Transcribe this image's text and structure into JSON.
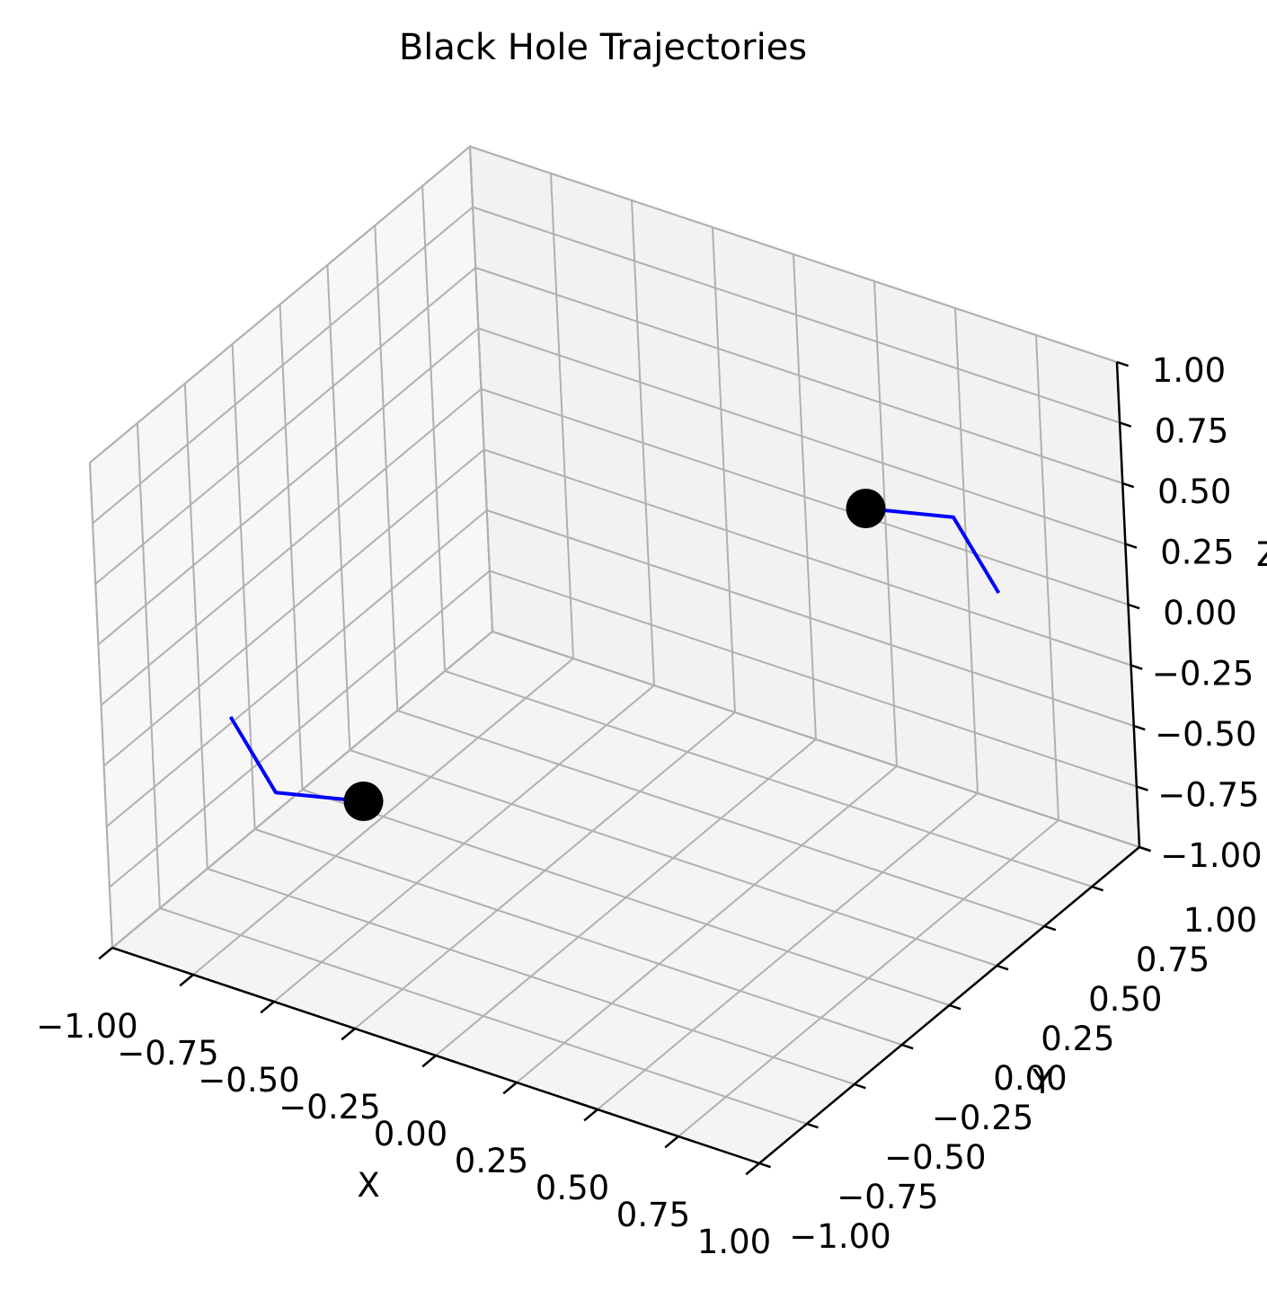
{
  "chart_data": {
    "type": "line",
    "projection": "3d",
    "title": "Black Hole Trajectories",
    "xlabel": "X",
    "ylabel": "Y",
    "zlabel": "Z",
    "xlim": [
      -1,
      1
    ],
    "ylim": [
      -1,
      1
    ],
    "zlim": [
      -1,
      1
    ],
    "xticks": [
      "−1.00",
      "−0.75",
      "−0.50",
      "−0.25",
      "0.00",
      "0.25",
      "0.50",
      "0.75",
      "1.00"
    ],
    "yticks": [
      "−1.00",
      "−0.75",
      "−0.50",
      "−0.25",
      "0.00",
      "0.25",
      "0.50",
      "0.75",
      "1.00"
    ],
    "zticks": [
      "−1.00",
      "−0.75",
      "−0.50",
      "−0.25",
      "0.00",
      "0.25",
      "0.50",
      "0.75",
      "1.00"
    ],
    "grid": true,
    "series": [
      {
        "color": "#0000ff",
        "points": [
          [
            -0.75,
            -0.75,
            -0.1
          ],
          [
            -0.65,
            -0.7,
            -0.4
          ],
          [
            -0.5,
            -0.5,
            -0.5
          ]
        ],
        "end_marker": "black-hole-marker"
      },
      {
        "color": "#0000ff",
        "points": [
          [
            0.75,
            0.75,
            0.1
          ],
          [
            0.65,
            0.7,
            0.4
          ],
          [
            0.5,
            0.5,
            0.5
          ]
        ],
        "end_marker": "black-hole-marker"
      }
    ],
    "marker_color": "#000000"
  }
}
